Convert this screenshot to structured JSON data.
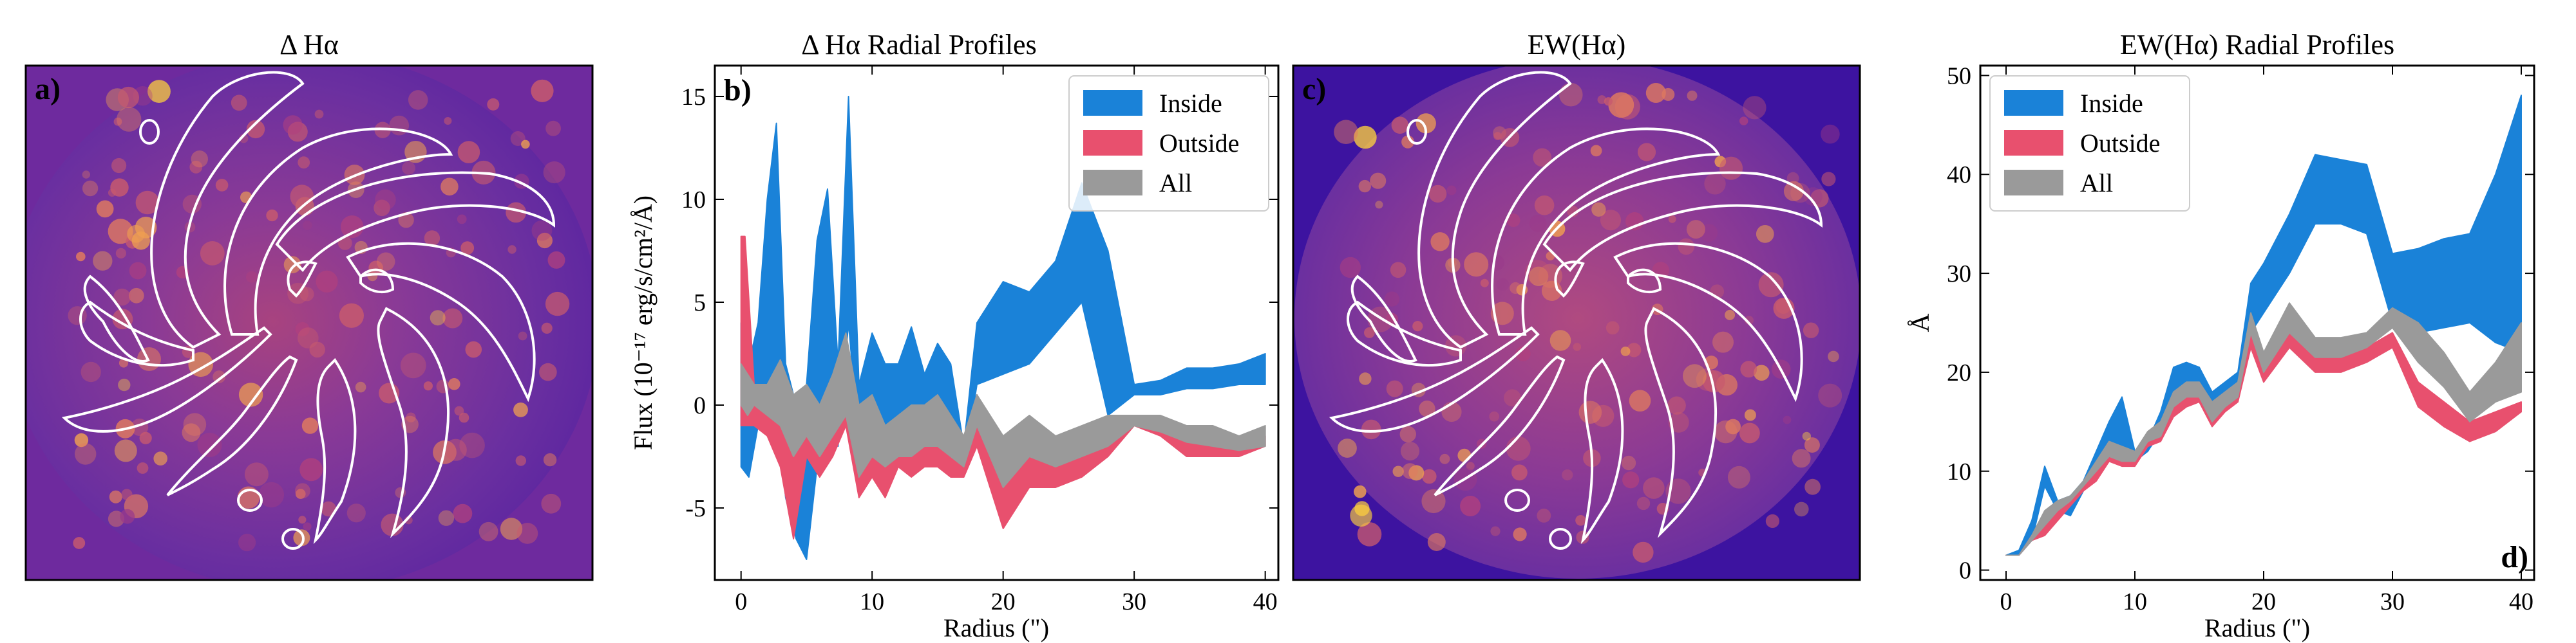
{
  "colors": {
    "inside": "#1a82d8",
    "outside": "#e8506e",
    "all": "#9a9a9a",
    "map_bg": "#6e2a9e",
    "contour": "#ffffff"
  },
  "panels": {
    "a": {
      "title": "Δ Hα",
      "letter": "a)"
    },
    "c": {
      "title": "EW(Hα)",
      "letter": "c)"
    }
  },
  "chart_data": [
    {
      "type": "area",
      "panel_letter": "b)",
      "title": "Δ Hα Radial Profiles",
      "xlabel": "Radius (\")",
      "ylabel": "Flux (10⁻¹⁷ erg/s/cm²/Å)",
      "xlim": [
        -2,
        41
      ],
      "ylim": [
        -8.5,
        16.5
      ],
      "xticks": [
        0,
        10,
        20,
        30,
        40
      ],
      "yticks": [
        -5,
        0,
        5,
        10,
        15
      ],
      "legend": {
        "position": "top-right",
        "entries": [
          "Inside",
          "Outside",
          "All"
        ]
      },
      "series": [
        {
          "name": "Inside",
          "x": [
            0,
            0.6,
            1.3,
            2.0,
            2.7,
            3.4,
            4.2,
            5.0,
            5.8,
            6.6,
            7.4,
            8.2,
            9.0,
            10.0,
            11.0,
            12.0,
            13.0,
            14.0,
            15.0,
            16.0,
            17.0,
            18.0,
            20.0,
            22.0,
            24.0,
            26.0,
            28.0,
            30.0,
            32.0,
            34.0,
            36.0,
            38.0,
            40.0
          ],
          "upper": [
            4.0,
            2.0,
            4.0,
            10.0,
            13.7,
            2.0,
            0.0,
            1.0,
            8.0,
            10.5,
            2.0,
            15.0,
            1.0,
            3.5,
            2.0,
            2.0,
            3.8,
            1.5,
            3.0,
            2.0,
            -2.0,
            4.0,
            6.0,
            5.5,
            7.0,
            10.8,
            7.5,
            1.0,
            1.2,
            1.8,
            1.8,
            2.0,
            2.5
          ],
          "lower": [
            -3.0,
            -3.5,
            -1.0,
            1.0,
            0.5,
            -4.5,
            -6.5,
            -7.5,
            -3.0,
            -1.0,
            -2.0,
            4.0,
            -2.0,
            -1.0,
            -3.0,
            -1.5,
            -1.0,
            -2.0,
            -1.5,
            -2.0,
            -3.0,
            1.0,
            1.5,
            2.0,
            3.5,
            5.0,
            -0.5,
            0.5,
            0.5,
            0.8,
            0.8,
            1.0,
            1.0
          ]
        },
        {
          "name": "Outside",
          "x": [
            0,
            0.3,
            1.0,
            2.0,
            3.0,
            4.0,
            5.0,
            6.0,
            7.0,
            8.0,
            9.0,
            10.0,
            11.0,
            12.0,
            13.0,
            14.0,
            15.0,
            16.0,
            17.0,
            18.0,
            20.0,
            22.0,
            24.0,
            26.0,
            28.0,
            30.0,
            32.0,
            34.0,
            36.0,
            38.0,
            40.0
          ],
          "upper": [
            8.2,
            8.2,
            1.0,
            0.5,
            2.0,
            0.0,
            0.5,
            -1.0,
            1.0,
            2.0,
            -1.5,
            -1.0,
            -2.0,
            -1.5,
            -1.5,
            -1.0,
            -1.0,
            -1.5,
            -2.0,
            0.5,
            -2.5,
            -1.0,
            -2.5,
            -1.5,
            -1.0,
            -0.5,
            -1.0,
            -1.5,
            -1.5,
            -1.5,
            -1.5
          ],
          "lower": [
            -1.0,
            -1.0,
            -1.0,
            -1.5,
            -3.0,
            -6.5,
            -2.5,
            -3.5,
            -2.5,
            -1.0,
            -4.5,
            -3.5,
            -4.5,
            -3.0,
            -3.5,
            -3.0,
            -3.0,
            -3.5,
            -3.5,
            -2.0,
            -6.0,
            -4.0,
            -4.0,
            -3.5,
            -2.5,
            -1.0,
            -1.5,
            -2.5,
            -2.5,
            -2.5,
            -2.0
          ]
        },
        {
          "name": "All",
          "x": [
            0,
            0.5,
            1.0,
            2.0,
            3.0,
            4.0,
            5.0,
            6.0,
            7.0,
            8.0,
            9.0,
            10.0,
            11.0,
            12.0,
            13.0,
            14.0,
            15.0,
            16.0,
            17.0,
            18.0,
            20.0,
            22.0,
            24.0,
            26.0,
            28.0,
            30.0,
            32.0,
            34.0,
            36.0,
            38.0,
            40.0
          ],
          "upper": [
            2.0,
            1.5,
            1.0,
            1.0,
            2.2,
            0.5,
            1.0,
            0.0,
            1.5,
            3.5,
            0.0,
            0.5,
            -1.0,
            -0.5,
            0.0,
            0.0,
            0.5,
            -0.5,
            -1.5,
            0.5,
            -1.5,
            -0.5,
            -1.5,
            -1.0,
            -0.5,
            -0.5,
            -0.5,
            -1.0,
            -1.0,
            -1.5,
            -1.0
          ],
          "lower": [
            0.0,
            -0.5,
            0.0,
            -0.5,
            -1.0,
            -2.5,
            -1.5,
            -2.5,
            -1.5,
            -0.5,
            -3.5,
            -2.5,
            -3.0,
            -2.5,
            -2.5,
            -2.0,
            -2.0,
            -2.5,
            -3.0,
            -1.0,
            -4.0,
            -2.5,
            -3.0,
            -2.5,
            -2.0,
            -1.0,
            -1.3,
            -1.8,
            -2.0,
            -2.2,
            -2.0
          ]
        }
      ]
    },
    {
      "type": "area",
      "panel_letter": "d)",
      "title": "EW(Hα) Radial Profiles",
      "xlabel": "Radius (\")",
      "ylabel": "Å",
      "xlim": [
        -2,
        41
      ],
      "ylim": [
        -1,
        51
      ],
      "xticks": [
        0,
        10,
        20,
        30,
        40
      ],
      "yticks": [
        0,
        10,
        20,
        30,
        40,
        50
      ],
      "legend": {
        "position": "top-left",
        "entries": [
          "Inside",
          "Outside",
          "All"
        ]
      },
      "series": [
        {
          "name": "Inside",
          "x": [
            0,
            1,
            2,
            3,
            4,
            5,
            6,
            7,
            8,
            9,
            10,
            11,
            12,
            13,
            14,
            15,
            16,
            17,
            18,
            19,
            20,
            22,
            24,
            26,
            28,
            30,
            32,
            34,
            36,
            38,
            40
          ],
          "upper": [
            1.5,
            2.0,
            5.0,
            10.5,
            7.0,
            7.5,
            9.0,
            12.0,
            15.0,
            17.5,
            12.0,
            13.0,
            16.0,
            20.5,
            21.0,
            20.5,
            18.0,
            19.0,
            20.0,
            29.0,
            31.0,
            36.0,
            42.0,
            41.5,
            41.0,
            32.0,
            32.5,
            33.5,
            34.0,
            40.0,
            48.0
          ],
          "lower": [
            1.5,
            1.5,
            3.0,
            8.5,
            6.0,
            5.5,
            8.0,
            10.0,
            13.0,
            12.5,
            11.0,
            12.0,
            14.0,
            17.5,
            18.5,
            18.0,
            16.0,
            17.0,
            18.0,
            24.0,
            26.0,
            30.0,
            35.0,
            35.0,
            34.0,
            25.0,
            24.0,
            24.5,
            25.0,
            23.0,
            22.0
          ]
        },
        {
          "name": "Outside",
          "x": [
            0,
            1,
            2,
            3,
            4,
            5,
            6,
            7,
            8,
            9,
            10,
            11,
            12,
            13,
            14,
            15,
            16,
            17,
            18,
            19,
            20,
            22,
            24,
            26,
            28,
            30,
            32,
            34,
            36,
            38,
            40
          ],
          "upper": [
            1.5,
            1.5,
            3.5,
            5.0,
            6.0,
            7.0,
            8.5,
            10.0,
            12.0,
            11.5,
            11.5,
            13.5,
            14.0,
            17.0,
            18.0,
            18.5,
            16.0,
            17.5,
            18.5,
            25.0,
            21.0,
            25.0,
            22.0,
            22.0,
            22.5,
            24.0,
            19.0,
            17.0,
            15.0,
            16.0,
            17.0
          ],
          "lower": [
            1.5,
            1.5,
            3.0,
            3.5,
            5.0,
            6.5,
            8.0,
            9.0,
            11.0,
            10.5,
            10.5,
            12.5,
            13.0,
            15.5,
            16.5,
            17.0,
            14.5,
            16.0,
            17.0,
            22.5,
            19.0,
            22.5,
            20.0,
            20.0,
            21.0,
            22.5,
            16.5,
            14.5,
            13.0,
            14.0,
            16.0
          ]
        },
        {
          "name": "All",
          "x": [
            0,
            1,
            2,
            3,
            4,
            5,
            6,
            7,
            8,
            9,
            10,
            11,
            12,
            13,
            14,
            15,
            16,
            17,
            18,
            19,
            20,
            22,
            24,
            26,
            28,
            30,
            32,
            34,
            36,
            38,
            40
          ],
          "upper": [
            1.5,
            1.5,
            3.5,
            6.0,
            7.0,
            7.5,
            9.0,
            11.0,
            13.0,
            12.5,
            12.0,
            14.0,
            15.0,
            18.0,
            19.0,
            19.0,
            17.0,
            18.0,
            19.0,
            26.0,
            22.0,
            27.0,
            23.5,
            23.5,
            24.0,
            26.5,
            25.0,
            22.0,
            18.0,
            21.0,
            25.0
          ],
          "lower": [
            1.5,
            1.5,
            3.0,
            4.5,
            6.0,
            7.0,
            8.5,
            10.0,
            11.5,
            11.0,
            11.0,
            13.0,
            13.5,
            16.5,
            17.5,
            17.5,
            15.0,
            16.5,
            17.5,
            24.0,
            20.0,
            24.0,
            21.5,
            21.5,
            22.5,
            24.5,
            21.0,
            18.5,
            15.0,
            17.0,
            18.0
          ]
        }
      ]
    }
  ]
}
